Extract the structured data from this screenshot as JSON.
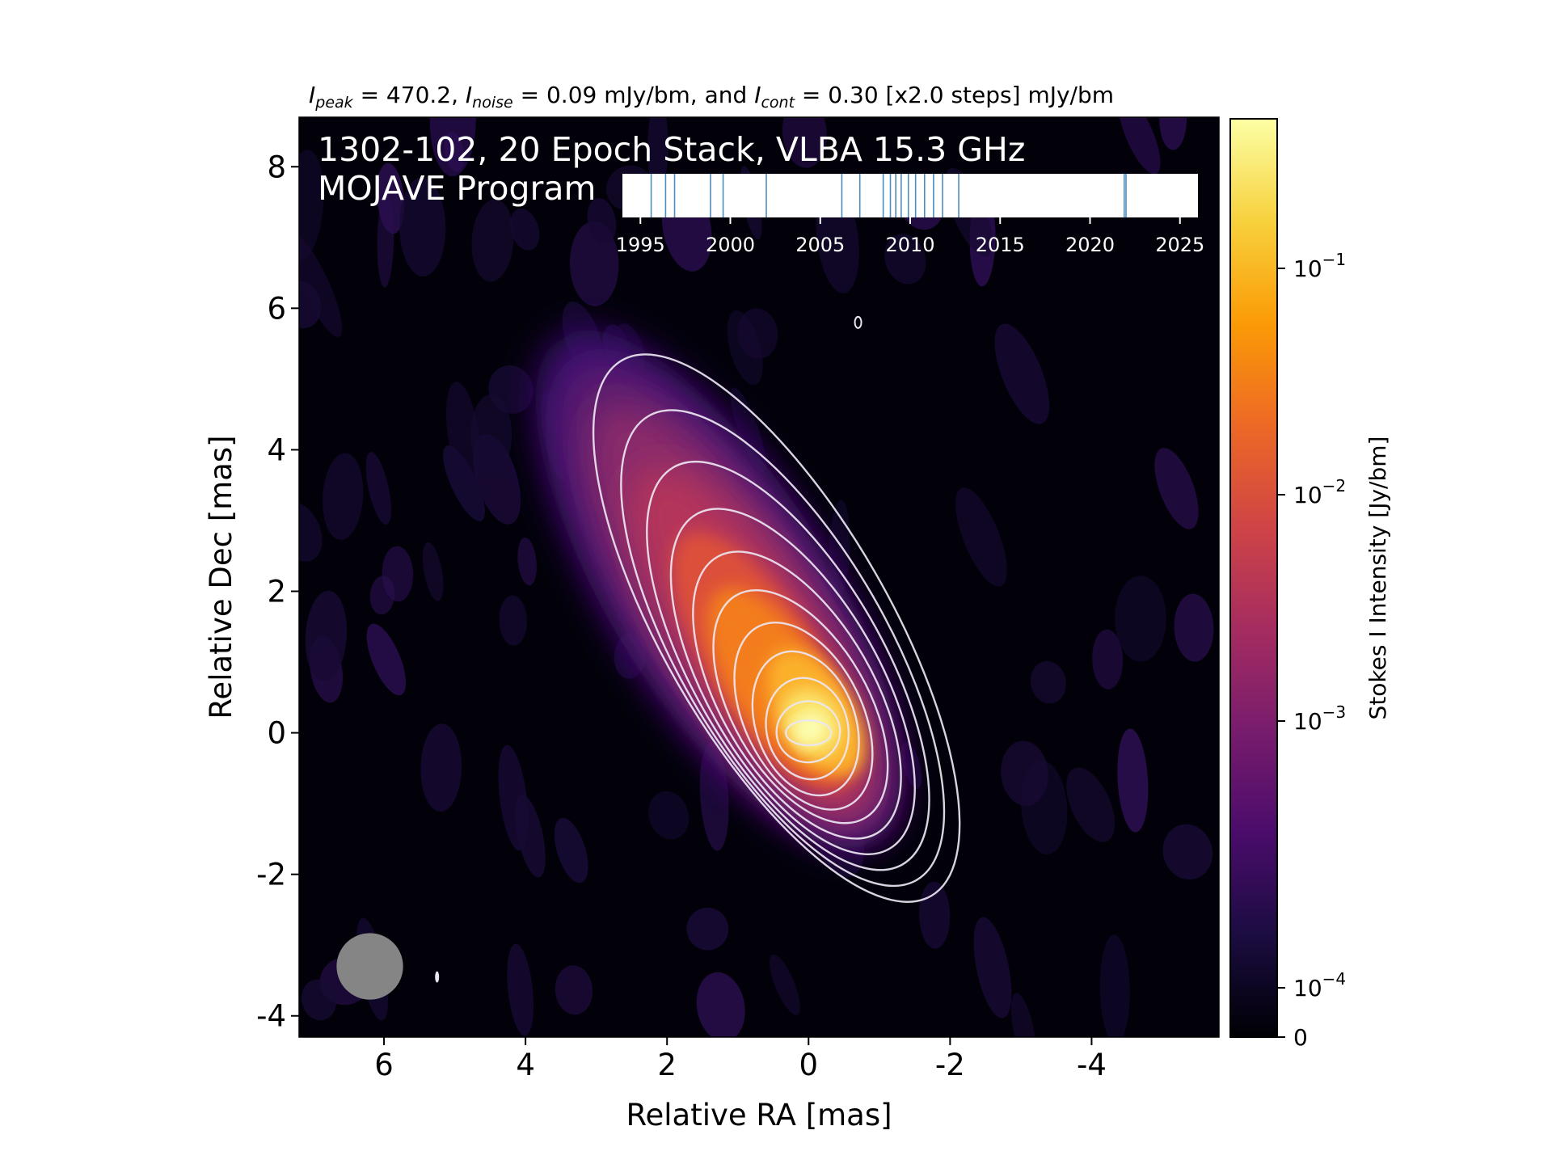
{
  "chart_data": {
    "type": "heatmap",
    "title_parts": {
      "peak_sym": "I",
      "peak_sub": "peak",
      "peak_text": " = 470.2, ",
      "noise_sym": "I",
      "noise_sub": "noise",
      "noise_text": " = 0.09 mJy/bm, and ",
      "cont_sym": "I",
      "cont_sub": "cont",
      "cont_text": " = 0.30 [x2.0 steps] mJy/bm"
    },
    "overlay_line1": "1302-102, 20 Epoch Stack, VLBA 15.3 GHz",
    "overlay_line2": "MOJAVE Program",
    "xlabel": "Relative RA [mas]",
    "ylabel": "Relative Dec [mas]",
    "xlim": [
      7.2,
      -5.8
    ],
    "ylim": [
      -4.3,
      8.7
    ],
    "xticks": [
      6,
      4,
      2,
      0,
      -2,
      -4
    ],
    "xtick_labels": [
      "6",
      "4",
      "2",
      "0",
      "-2",
      "-4"
    ],
    "yticks": [
      8,
      6,
      4,
      2,
      0,
      -2,
      -4
    ],
    "ytick_labels": [
      "8",
      "6",
      "4",
      "2",
      "0",
      "-2",
      "-4"
    ],
    "colorbar": {
      "label": "Stokes I Intensity [Jy/bm]",
      "scale": "log",
      "ticks": [
        {
          "value": 0.1,
          "base": "10",
          "exp": "−1"
        },
        {
          "value": 0.01,
          "base": "10",
          "exp": "−2"
        },
        {
          "value": 0.001,
          "base": "10",
          "exp": "−3"
        },
        {
          "value": 0.0001,
          "base": "10",
          "exp": "−4"
        },
        {
          "value": 0,
          "base": "0",
          "exp": ""
        }
      ],
      "colors": [
        "#000004",
        "#1b0c41",
        "#4a0c6b",
        "#781c6d",
        "#a52c60",
        "#cf4446",
        "#ed6925",
        "#fb9b06",
        "#f7d13d",
        "#fcffa4"
      ]
    },
    "peak_jy": 0.4702,
    "contour_base_mjy": 0.3,
    "contour_step": 2.0,
    "contour_count": 11,
    "beam": {
      "x": 6.2,
      "y": -3.3,
      "label": "beam"
    },
    "epoch_timeline": {
      "range": [
        1994,
        2026
      ],
      "ticks": [
        1995,
        2000,
        2005,
        2010,
        2015,
        2020,
        2025
      ],
      "tick_labels": [
        "1995",
        "2000",
        "2005",
        "2010",
        "2015",
        "2020",
        "2025"
      ],
      "epochs": [
        1995.6,
        1996.4,
        1996.9,
        1998.9,
        1999.6,
        2002.0,
        2006.2,
        2007.2,
        2008.5,
        2008.9,
        2009.2,
        2009.5,
        2009.9,
        2010.3,
        2010.8,
        2011.3,
        2011.8,
        2012.7,
        2021.9,
        2022.0
      ],
      "line_color": "#4c8dbf"
    }
  }
}
